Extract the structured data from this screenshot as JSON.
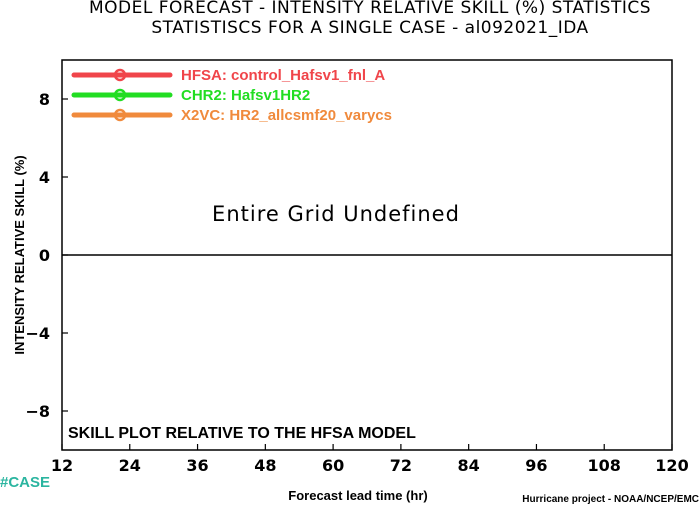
{
  "title_line1": "MODEL FORECAST - INTENSITY RELATIVE SKILL (%) STATISTICS",
  "title_line2": "STATISTISCS FOR A SINGLE CASE - al092021_IDA",
  "center_message": "Entire Grid Undefined",
  "footer_note": "SKILL PLOT RELATIVE TO THE HFSA MODEL",
  "case_tag": "#CASE",
  "credit": "Hurricane project - NOAA/NCEP/EMC",
  "colors": {
    "hfsa": "#f0454a",
    "chr2": "#22dd22",
    "x2vc": "#f08a3c"
  },
  "chart_data": {
    "type": "line",
    "title": "MODEL FORECAST - INTENSITY RELATIVE SKILL (%) STATISTICS",
    "subtitle": "STATISTISCS FOR A SINGLE CASE - al092021_IDA",
    "xlabel": "Forecast lead time (hr)",
    "ylabel": "INTENSITY RELATIVE SKILL (%)",
    "xlim": [
      12,
      120
    ],
    "ylim": [
      -10,
      10
    ],
    "x_ticks": [
      12,
      24,
      36,
      48,
      60,
      72,
      84,
      96,
      108,
      120
    ],
    "y_ticks": [
      -8,
      -4,
      0,
      4,
      8
    ],
    "zero_line": 0,
    "grid": false,
    "legend_position": "top-left",
    "series": [
      {
        "name": "HFSA: control_Hafsv1_fnl_A",
        "color": "#f0454a",
        "values": []
      },
      {
        "name": "CHR2: Hafsv1HR2",
        "color": "#22dd22",
        "values": []
      },
      {
        "name": "X2VC: HR2_allcsmf20_varycs",
        "color": "#f08a3c",
        "values": []
      }
    ]
  }
}
